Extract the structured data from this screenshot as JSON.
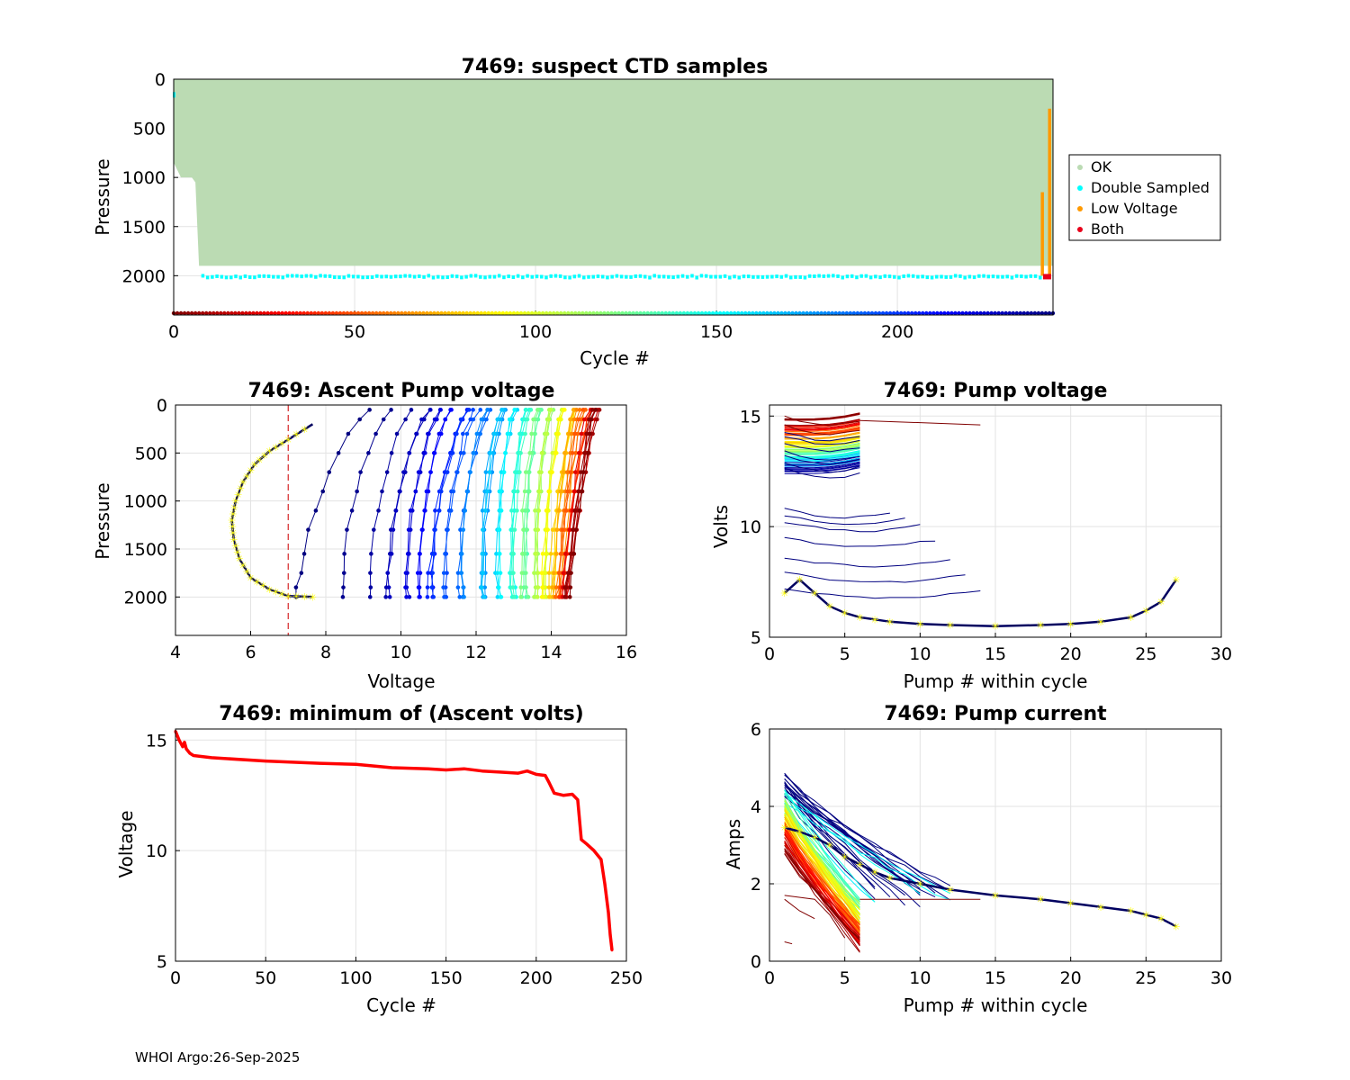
{
  "footer": "WHOI Argo:26-Sep-2025",
  "colors": {
    "ok": "#bbdbb3",
    "double": "#00ffff",
    "low": "#ff9900",
    "both": "#e8001a",
    "red_line": "#ff0000",
    "yellow": "#ffff00",
    "grid": "#e0e0e0"
  },
  "chart_data": [
    {
      "id": "suspect",
      "type": "scatter",
      "title": "7469: suspect CTD samples",
      "xlabel": "Cycle #",
      "ylabel": "Pressure",
      "xlim": [
        0,
        243
      ],
      "ylim": [
        2400,
        0
      ],
      "xticks": [
        "0",
        "50",
        "100",
        "150",
        "200"
      ],
      "xtick_values": [
        0,
        50,
        100,
        150,
        200
      ],
      "yticks": [
        "0",
        "500",
        "1000",
        "1500",
        "2000"
      ],
      "ytick_values": [
        0,
        500,
        1000,
        1500,
        2000
      ],
      "legend": [
        "OK",
        "Double Sampled",
        "Low Voltage",
        "Both"
      ],
      "legend_position": "outside-right",
      "ok_bottom": [
        [
          0,
          850
        ],
        [
          2,
          1000
        ],
        [
          5,
          1000
        ],
        [
          6,
          1050
        ],
        [
          7,
          1900
        ],
        [
          241,
          1900
        ]
      ],
      "double_sampled_pressure": 2010,
      "low_voltage": [
        {
          "cycle": 240,
          "top": 1150,
          "bottom": 2000
        },
        {
          "cycle": 242,
          "top": 300,
          "bottom": 2000
        }
      ],
      "both": [
        {
          "cycle": 241,
          "pressure": 2010
        }
      ],
      "cycle_range": [
        0,
        243
      ]
    },
    {
      "id": "ascent",
      "type": "line",
      "title": "7469: Ascent Pump voltage",
      "xlabel": "Voltage",
      "ylabel": "Pressure",
      "xlim": [
        4,
        16
      ],
      "ylim": [
        2400,
        0
      ],
      "xticks": [
        "4",
        "6",
        "8",
        "10",
        "12",
        "14",
        "16"
      ],
      "xtick_values": [
        4,
        6,
        8,
        10,
        12,
        14,
        16
      ],
      "yticks": [
        "0",
        "500",
        "1000",
        "1500",
        "2000"
      ],
      "ytick_values": [
        0,
        500,
        1000,
        1500,
        2000
      ],
      "threshold_voltage": 7,
      "last_profile": [
        [
          7.65,
          2000
        ],
        [
          7,
          1990
        ],
        [
          6.5,
          1920
        ],
        [
          6,
          1800
        ],
        [
          5.7,
          1600
        ],
        [
          5.55,
          1400
        ],
        [
          5.5,
          1200
        ],
        [
          5.6,
          1000
        ],
        [
          5.8,
          800
        ],
        [
          6.1,
          620
        ],
        [
          6.5,
          480
        ],
        [
          7,
          360
        ],
        [
          7.65,
          200
        ]
      ],
      "profile_bottom_volts": [
        7.2,
        8.4,
        9.1,
        9.6,
        10.2,
        10.5,
        10.8,
        11.2,
        11.6,
        12.2,
        12.6,
        13.0,
        13.3,
        13.6,
        13.8,
        14.0,
        14.2,
        14.3,
        14.4
      ],
      "profile_top_volts": [
        9.2,
        9.8,
        10.3,
        10.7,
        11.1,
        11.4,
        11.7,
        12.0,
        12.3,
        12.7,
        13.0,
        13.4,
        13.7,
        14.0,
        14.3,
        14.6,
        14.8,
        15.0,
        15.2
      ]
    },
    {
      "id": "pumpvolt",
      "type": "line",
      "title": "7469: Pump voltage",
      "xlabel": "Pump # within cycle",
      "ylabel": "Volts",
      "xlim": [
        0,
        30
      ],
      "ylim": [
        5,
        15.5
      ],
      "xticks": [
        "0",
        "5",
        "10",
        "15",
        "20",
        "25",
        "30"
      ],
      "xtick_values": [
        0,
        5,
        10,
        15,
        20,
        25,
        30
      ],
      "yticks": [
        "5",
        "10",
        "15"
      ],
      "ytick_values": [
        5,
        10,
        15
      ],
      "last_cycle": [
        [
          1,
          7
        ],
        [
          2,
          7.6
        ],
        [
          3,
          7
        ],
        [
          4,
          6.4
        ],
        [
          5,
          6.1
        ],
        [
          6,
          5.9
        ],
        [
          7,
          5.8
        ],
        [
          8,
          5.7
        ],
        [
          10,
          5.6
        ],
        [
          12,
          5.55
        ],
        [
          15,
          5.5
        ],
        [
          18,
          5.55
        ],
        [
          20,
          5.6
        ],
        [
          22,
          5.7
        ],
        [
          24,
          5.9
        ],
        [
          25,
          6.2
        ],
        [
          26,
          6.6
        ],
        [
          27,
          7.6
        ]
      ],
      "level_volts": [
        15,
        14.6,
        14.3,
        14.1,
        13.8,
        13.4,
        13.2,
        12.9,
        12.6,
        10.8,
        10.5,
        10.2,
        9.5,
        8.6,
        7.9,
        7.2
      ]
    },
    {
      "id": "minvolt",
      "type": "line",
      "title": "7469: minimum of (Ascent volts)",
      "xlabel": "Cycle #",
      "ylabel": "Voltage",
      "xlim": [
        0,
        250
      ],
      "ylim": [
        5,
        15.5
      ],
      "xticks": [
        "0",
        "50",
        "100",
        "150",
        "200",
        "250"
      ],
      "xtick_values": [
        0,
        50,
        100,
        150,
        200,
        250
      ],
      "yticks": [
        "5",
        "10",
        "15"
      ],
      "ytick_values": [
        5,
        10,
        15
      ],
      "x": [
        0,
        2,
        4,
        5,
        6,
        8,
        10,
        20,
        50,
        80,
        100,
        120,
        140,
        150,
        160,
        170,
        180,
        190,
        195,
        200,
        205,
        207,
        210,
        215,
        220,
        223,
        225,
        228,
        232,
        236,
        238,
        240,
        241,
        242
      ],
      "y": [
        15.4,
        15.0,
        14.7,
        14.9,
        14.6,
        14.4,
        14.3,
        14.2,
        14.05,
        13.95,
        13.9,
        13.75,
        13.7,
        13.65,
        13.7,
        13.6,
        13.55,
        13.5,
        13.6,
        13.45,
        13.4,
        13.1,
        12.6,
        12.5,
        12.55,
        12.3,
        10.5,
        10.3,
        10.0,
        9.6,
        8.5,
        7.2,
        6.2,
        5.5
      ]
    },
    {
      "id": "pumpcurr",
      "type": "line",
      "title": "7469: Pump current",
      "xlabel": "Pump # within cycle",
      "ylabel": "Amps",
      "xlim": [
        0,
        30
      ],
      "ylim": [
        0,
        6
      ],
      "xticks": [
        "0",
        "5",
        "10",
        "15",
        "20",
        "25",
        "30"
      ],
      "xtick_values": [
        0,
        5,
        10,
        15,
        20,
        25,
        30
      ],
      "yticks": [
        "0",
        "2",
        "4",
        "6"
      ],
      "ytick_values": [
        0,
        2,
        4,
        6
      ],
      "last_cycle": [
        [
          1,
          3.45
        ],
        [
          2,
          3.35
        ],
        [
          3,
          3.2
        ],
        [
          4,
          3.0
        ],
        [
          5,
          2.7
        ],
        [
          6,
          2.5
        ],
        [
          7,
          2.3
        ],
        [
          8,
          2.15
        ],
        [
          10,
          2.0
        ],
        [
          12,
          1.85
        ],
        [
          15,
          1.7
        ],
        [
          18,
          1.6
        ],
        [
          20,
          1.5
        ],
        [
          22,
          1.4
        ],
        [
          24,
          1.3
        ],
        [
          25,
          1.2
        ],
        [
          26,
          1.1
        ],
        [
          27,
          0.9
        ]
      ]
    }
  ]
}
